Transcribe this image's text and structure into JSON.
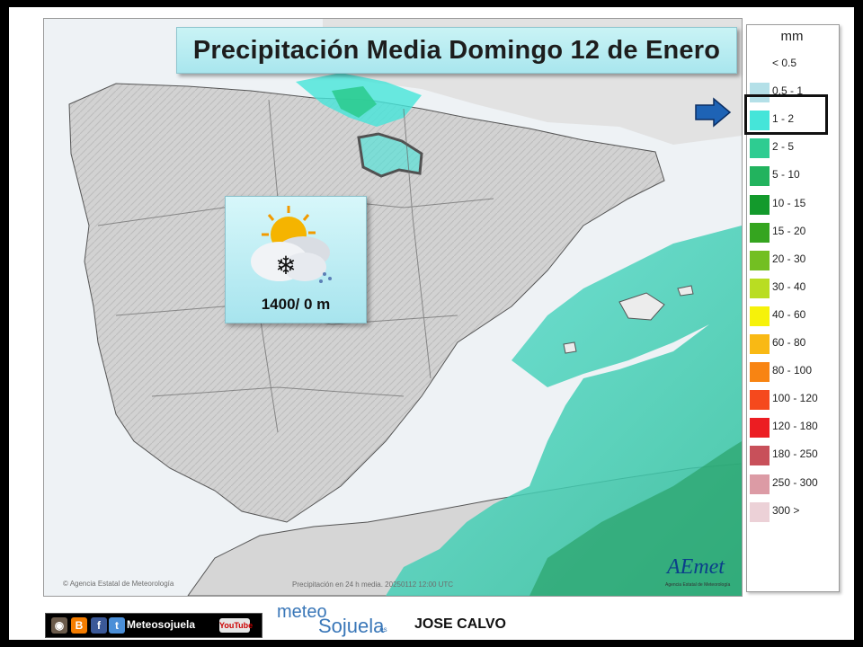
{
  "title": "Precipitación Media Domingo 12 de Enero",
  "forecast": {
    "icon": "sun-cloud-snow-icon",
    "altitude_label": "1400/ 0 m"
  },
  "legend": {
    "unit": "mm",
    "highlighted_index": 2,
    "items": [
      {
        "label": "< 0.5",
        "color": "#ffffff"
      },
      {
        "label": "0.5 - 1",
        "color": "#b4e0e8"
      },
      {
        "label": "1 - 2",
        "color": "#45e5d9"
      },
      {
        "label": "2 - 5",
        "color": "#2ecc91"
      },
      {
        "label": "5 - 10",
        "color": "#22b35e"
      },
      {
        "label": "10 - 15",
        "color": "#139a2c"
      },
      {
        "label": "15 - 20",
        "color": "#35a51f"
      },
      {
        "label": "20 - 30",
        "color": "#73bf22"
      },
      {
        "label": "30 - 40",
        "color": "#b9dd22"
      },
      {
        "label": "40 - 60",
        "color": "#f6f20a"
      },
      {
        "label": "60 - 80",
        "color": "#f9b914"
      },
      {
        "label": "80 - 100",
        "color": "#f88412"
      },
      {
        "label": "100 - 120",
        "color": "#f5491d"
      },
      {
        "label": "120 - 180",
        "color": "#ec1d22"
      },
      {
        "label": "180 - 250",
        "color": "#c8505a"
      },
      {
        "label": "250 - 300",
        "color": "#dc9ba5"
      },
      {
        "label": "300 >",
        "color": "#ecd1d7"
      }
    ]
  },
  "credits": {
    "agency": "Agencia Estatal de Meteorología",
    "caption": "Precipitación en 24 h media. 20250112 12:00 UTC",
    "logo": "AEmet",
    "logo_sub": "Agencia Estatal de Meteorología"
  },
  "footer": {
    "social_name": "Meteosojuela",
    "youtube": "YouTube",
    "brand_top": "meteo",
    "brand_main": "Sojuela",
    "brand_suffix": ".es",
    "author": "JOSE CALVO"
  },
  "colors": {
    "accent_cyan": "#a9e6ee",
    "arrow_blue": "#1e63b5",
    "land_gray": "#d4d4d4",
    "sea_blue": "#eef2f5"
  }
}
